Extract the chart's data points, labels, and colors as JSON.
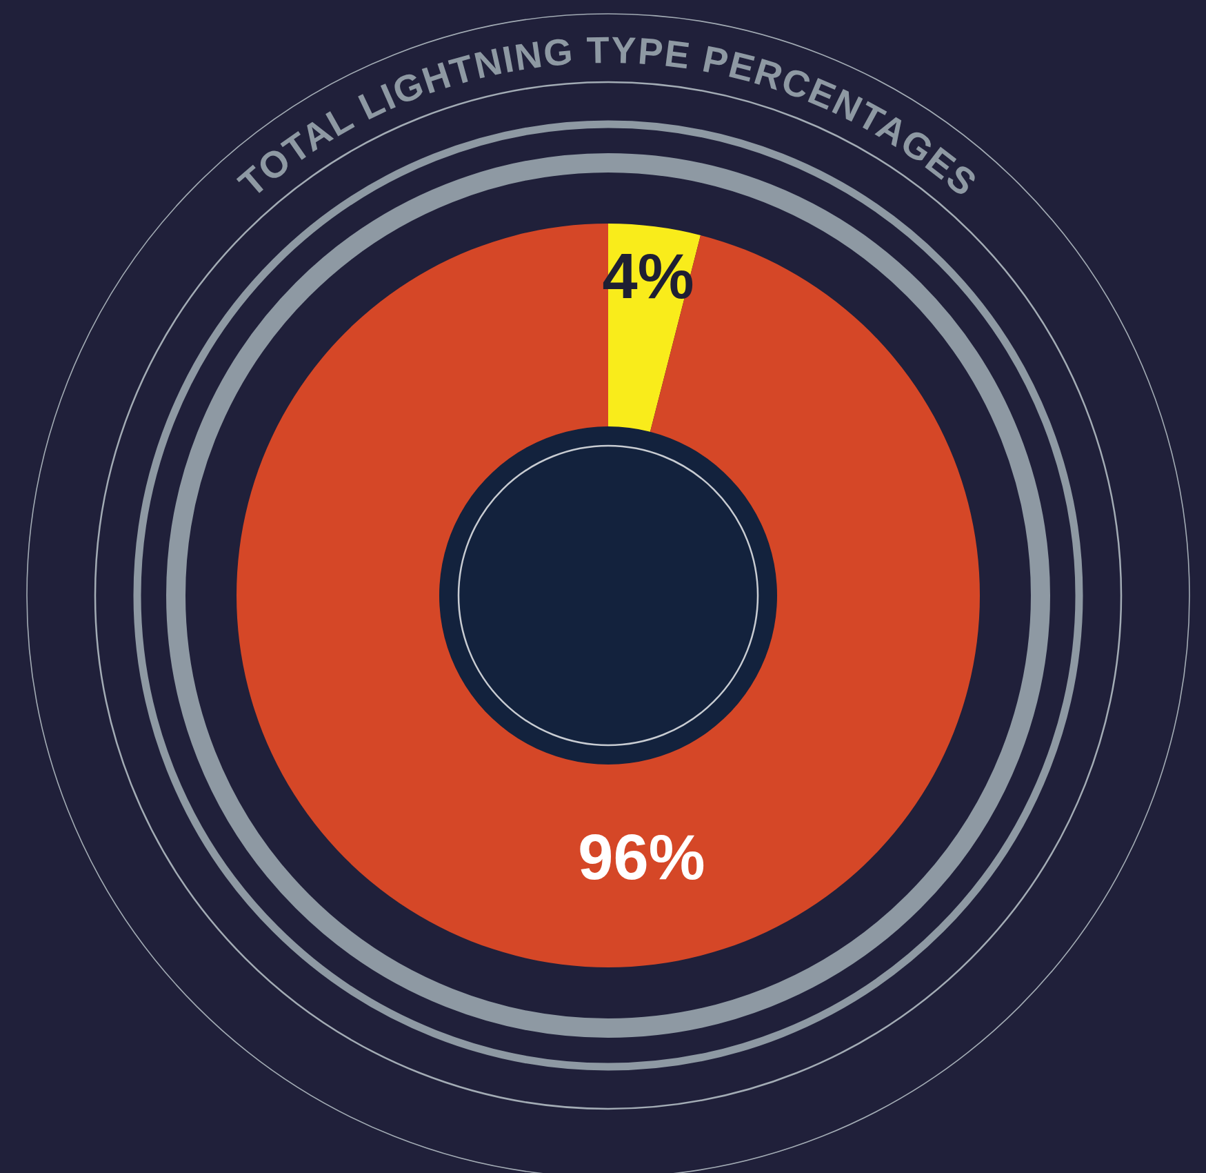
{
  "chart_data": {
    "type": "donut",
    "title": "TOTAL LIGHTNING TYPE PERCENTAGES",
    "categories": [
      null,
      null
    ],
    "values": [
      4,
      96
    ],
    "colors": [
      "#f9ec1b",
      "#d54727"
    ],
    "value_labels": [
      "4%",
      "96%"
    ]
  }
}
